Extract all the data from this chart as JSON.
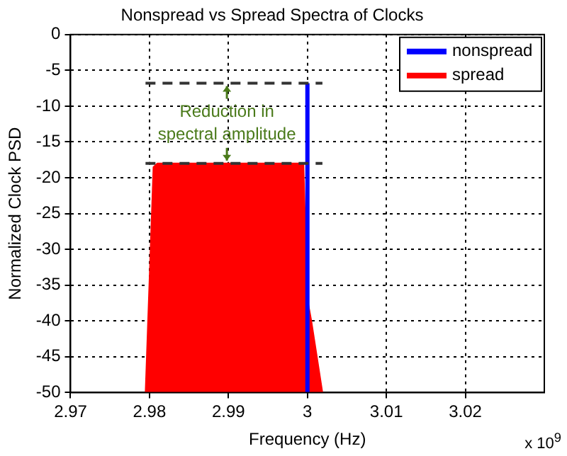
{
  "chart_data": {
    "type": "line",
    "title": "Nonspread vs Spread Spectra of Clocks",
    "xlabel": "Frequency (Hz)",
    "ylabel": "Normalized Clock PSD",
    "xlim": [
      2.97,
      3.03
    ],
    "xticks": [
      2.97,
      2.98,
      2.99,
      3,
      3.01,
      3.02
    ],
    "ylim": [
      -50,
      0
    ],
    "yticks": [
      0,
      -5,
      -10,
      -15,
      -20,
      -25,
      -30,
      -35,
      -40,
      -45,
      -50
    ],
    "series": [
      {
        "name": "nonspread",
        "type": "line",
        "color": "#0000ff",
        "x": [
          3.0,
          3.0
        ],
        "values": [
          -50,
          -6.8
        ]
      },
      {
        "name": "spread",
        "type": "area",
        "color": "#ff0000",
        "x": [
          2.9795,
          2.9805,
          2.981,
          2.99,
          2.9995,
          3.0,
          3.0005,
          3.0019
        ],
        "values": [
          -50,
          -18.5,
          -18,
          -18,
          -18,
          -37,
          -40,
          -50
        ]
      }
    ],
    "ref_lines": [
      {
        "axis": "y",
        "value": -6.8,
        "color": "#333333",
        "line_style": "dashed"
      },
      {
        "axis": "y",
        "value": -18,
        "color": "#333333",
        "line_style": "dashed"
      }
    ],
    "annotations": [
      "Reduction in spectral amplitude",
      "x 10$^{9}$"
    ],
    "grid": true,
    "legend": "top right",
    "marker": "none"
  }
}
